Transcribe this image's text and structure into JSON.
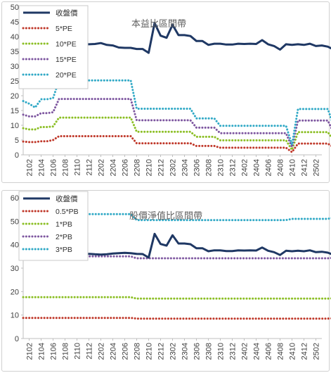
{
  "chart_data": [
    {
      "type": "line",
      "annotation": "本益比區間帶",
      "ylim": [
        0,
        50
      ],
      "yticks": [
        0,
        5,
        10,
        15,
        20,
        25,
        30,
        35,
        40,
        45,
        50
      ],
      "xtick_labels": [
        "2102",
        "2104",
        "2106",
        "2108",
        "2110",
        "2112",
        "2202",
        "2204",
        "2206",
        "2208",
        "2210",
        "2212",
        "2302",
        "2304",
        "2306",
        "2308",
        "2310",
        "2312",
        "2402",
        "2404",
        "2406",
        "2408",
        "2410",
        "2412",
        "2502"
      ],
      "x_start": "2101",
      "x_end": "2503",
      "legend_position": "top-left",
      "series": [
        {
          "name": "收盤價",
          "color": "#1f3864",
          "style": "solid",
          "values": [
            37.5,
            37.3,
            37.5,
            38,
            37.8,
            37.6,
            37.8,
            37.7,
            37.5,
            37.8,
            37.4,
            37.4,
            37.5,
            37.8,
            37.2,
            37,
            36.3,
            36.2,
            36.2,
            35.8,
            35.8,
            34.5,
            44.6,
            40.3,
            39.6,
            44,
            40.5,
            40.5,
            40.2,
            38.5,
            38.5,
            37.2,
            37.6,
            37.6,
            37.3,
            37.3,
            37.6,
            37.5,
            37.6,
            37.5,
            38.8,
            37.4,
            36.8,
            35.6,
            37.4,
            37.2,
            37.4,
            37.2,
            37.6,
            36.8,
            37,
            36.6,
            35.6,
            35.4,
            35.8,
            35.4,
            33.6,
            34.2
          ]
        },
        {
          "name": "5*PE",
          "color": "#c0392b",
          "style": "dotted",
          "values": [
            4.5,
            4.3,
            4.3,
            4.6,
            4.6,
            5,
            6.3,
            6.3,
            6.3,
            6.3,
            6.3,
            6.3,
            6.3,
            6.3,
            6.3,
            6.3,
            6.3,
            6.3,
            6.3,
            3.9,
            3.9,
            3.9,
            3.9,
            3.9,
            3.9,
            3.9,
            3.9,
            3.9,
            3.9,
            3,
            3,
            3,
            3,
            2.4,
            2.4,
            2.4,
            2.4,
            2.4,
            2.4,
            2.4,
            2.4,
            2.4,
            2.4,
            2.4,
            2.4,
            0.9,
            3.8,
            3.8,
            3.8,
            3.8,
            3.8,
            3.8,
            2.5,
            2.5,
            2.5,
            2.5,
            2.5,
            2.5
          ]
        },
        {
          "name": "10*PE",
          "color": "#8cbf26",
          "style": "dotted",
          "values": [
            9,
            8.6,
            8.6,
            9.4,
            9.4,
            9.6,
            12.6,
            12.6,
            12.6,
            12.6,
            12.6,
            12.6,
            12.6,
            12.6,
            12.6,
            12.6,
            12.6,
            12.6,
            12.6,
            7.8,
            7.8,
            7.8,
            7.8,
            7.8,
            7.8,
            7.8,
            7.8,
            7.8,
            7.8,
            6.1,
            6.1,
            6.1,
            6.1,
            4.9,
            4.9,
            4.9,
            4.9,
            4.9,
            4.9,
            4.9,
            4.9,
            4.9,
            4.9,
            4.9,
            4.9,
            1.7,
            7.7,
            7.7,
            7.7,
            7.7,
            7.7,
            7.7,
            4.9,
            4.9,
            4.9,
            4.9,
            4.9,
            4.9
          ]
        },
        {
          "name": "15*PE",
          "color": "#7e57a0",
          "style": "dotted",
          "values": [
            13.6,
            13,
            13,
            14.1,
            14.1,
            14.4,
            18.9,
            18.9,
            18.9,
            18.9,
            18.9,
            18.9,
            18.9,
            18.9,
            18.9,
            18.9,
            18.9,
            18.9,
            18.9,
            11.7,
            11.7,
            11.7,
            11.7,
            11.7,
            11.7,
            11.7,
            11.7,
            11.7,
            11.7,
            9.2,
            9.2,
            9.2,
            9.2,
            7.3,
            7.3,
            7.3,
            7.3,
            7.3,
            7.3,
            7.3,
            7.3,
            7.3,
            7.3,
            7.3,
            7.3,
            2.6,
            11.6,
            11.6,
            11.6,
            11.6,
            11.6,
            11.6,
            7.3,
            7.3,
            7.3,
            7.3,
            7.3,
            7.3
          ]
        },
        {
          "name": "20*PE",
          "color": "#31a9c6",
          "style": "dotted",
          "values": [
            18.2,
            17.3,
            16,
            18.8,
            18.8,
            19.2,
            25.2,
            25.2,
            25.2,
            25.2,
            25.2,
            25.2,
            25.2,
            25.2,
            25.2,
            25.2,
            25.2,
            25.2,
            25.2,
            15.6,
            15.6,
            15.6,
            15.6,
            15.6,
            15.6,
            15.6,
            15.6,
            15.6,
            15.6,
            12.3,
            12.3,
            12.3,
            12.3,
            9.8,
            9.8,
            9.8,
            9.8,
            9.8,
            9.8,
            9.8,
            9.8,
            9.8,
            9.8,
            9.8,
            9.8,
            3.4,
            15.5,
            15.5,
            15.5,
            15.5,
            15.5,
            15.5,
            9.7,
            9.7,
            9.7,
            9.7,
            9.7,
            9.7
          ]
        }
      ]
    },
    {
      "type": "line",
      "annotation": "股價淨值比區間帶",
      "ylim": [
        0,
        60
      ],
      "yticks": [
        0,
        10,
        20,
        30,
        40,
        50,
        60
      ],
      "xtick_labels": [
        "2102",
        "2104",
        "2106",
        "2108",
        "2110",
        "2112",
        "2202",
        "2204",
        "2206",
        "2208",
        "2210",
        "2212",
        "2302",
        "2304",
        "2306",
        "2308",
        "2310",
        "2312",
        "2402",
        "2404",
        "2406",
        "2408",
        "2410",
        "2412",
        "2502"
      ],
      "x_start": "2101",
      "x_end": "2503",
      "legend_position": "top-left",
      "series": [
        {
          "name": "收盤價",
          "color": "#1f3864",
          "style": "solid",
          "values": [
            34,
            34,
            35.3,
            35,
            34.5,
            34,
            34.6,
            35,
            35.4,
            35.8,
            36,
            36.1,
            35.9,
            35.8,
            35.9,
            36.2,
            36.4,
            36.5,
            36.4,
            36.1,
            36,
            34.5,
            44.6,
            40.3,
            39.6,
            44,
            40.5,
            40.5,
            40.2,
            38.5,
            38.5,
            37.2,
            37.6,
            37.6,
            37.3,
            37.3,
            37.6,
            37.5,
            37.6,
            37.5,
            38.8,
            37.4,
            36.8,
            35.6,
            37.4,
            37.2,
            37.4,
            37.2,
            37.6,
            36.8,
            37,
            36.6,
            35.6,
            35.4,
            35.8,
            35.4,
            33.6,
            34.2
          ]
        },
        {
          "name": "0.5*PB",
          "color": "#c0392b",
          "style": "dotted",
          "values": [
            8.8,
            8.8,
            8.8,
            8.8,
            8.8,
            8.8,
            8.8,
            8.8,
            8.8,
            8.8,
            8.8,
            8.8,
            8.8,
            8.8,
            8.8,
            8.8,
            8.8,
            8.8,
            8.8,
            8.5,
            8.5,
            8.5,
            8.5,
            8.5,
            8.5,
            8.5,
            8.5,
            8.5,
            8.5,
            8.5,
            8.5,
            8.5,
            8.5,
            8.5,
            8.5,
            8.5,
            8.5,
            8.5,
            8.5,
            8.5,
            8.5,
            8.5,
            8.5,
            8.5,
            8.5,
            8.5,
            8.5,
            8.5,
            8.5,
            8.5,
            8.5,
            8.5,
            8.6,
            8.6,
            8.6,
            8.6,
            8.6,
            8.6
          ]
        },
        {
          "name": "1*PB",
          "color": "#8cbf26",
          "style": "dotted",
          "values": [
            17.6,
            17.6,
            17.6,
            17.6,
            17.6,
            17.6,
            17.6,
            17.6,
            17.6,
            17.6,
            17.6,
            17.6,
            17.6,
            17.6,
            17.6,
            17.6,
            17.6,
            17.6,
            17.6,
            17,
            17,
            17,
            17,
            17,
            17,
            17,
            17,
            17,
            17,
            17,
            17,
            17,
            17,
            17,
            17,
            17,
            17,
            17,
            17,
            17,
            17,
            17,
            17,
            17,
            17,
            17,
            17,
            17,
            17,
            17,
            17,
            17,
            17.2,
            17.2,
            17.2,
            17.2,
            17.2,
            17.2
          ]
        },
        {
          "name": "2*PB",
          "color": "#7e57a0",
          "style": "dotted",
          "values": [
            35,
            35,
            35,
            35,
            35,
            35,
            35,
            35,
            35,
            35,
            35,
            35,
            35,
            35,
            35,
            35,
            35,
            35,
            35,
            34.2,
            34.2,
            34.2,
            34.2,
            34.2,
            34.2,
            34.2,
            34.2,
            34.2,
            34.2,
            34.2,
            34.2,
            34.2,
            34.2,
            34.2,
            34.2,
            34.2,
            34.2,
            34.2,
            34.2,
            34.2,
            34.2,
            34.2,
            34.2,
            34.2,
            34.2,
            34.2,
            34.2,
            34.2,
            34.2,
            34.2,
            34.2,
            34.2,
            34.4,
            34.4,
            34.4,
            34.4,
            34.4,
            34.4
          ]
        },
        {
          "name": "3*PB",
          "color": "#31a9c6",
          "style": "dotted",
          "values": [
            53,
            53,
            53,
            53,
            53,
            53,
            53,
            53,
            53,
            53,
            53,
            53,
            53,
            53,
            53,
            53,
            53,
            53,
            53,
            50.5,
            50.5,
            50.5,
            50.5,
            50.5,
            50.5,
            50.5,
            50.5,
            50.5,
            50.5,
            50.5,
            50.5,
            50.5,
            50.5,
            50.5,
            50.5,
            50.5,
            50.5,
            50.5,
            50.5,
            50.5,
            50.5,
            50.5,
            50.5,
            50.5,
            50.5,
            51,
            51,
            51,
            51,
            51,
            51,
            51,
            51.6,
            51.6,
            51.6,
            51.6,
            51.6,
            51.6
          ]
        }
      ]
    }
  ]
}
